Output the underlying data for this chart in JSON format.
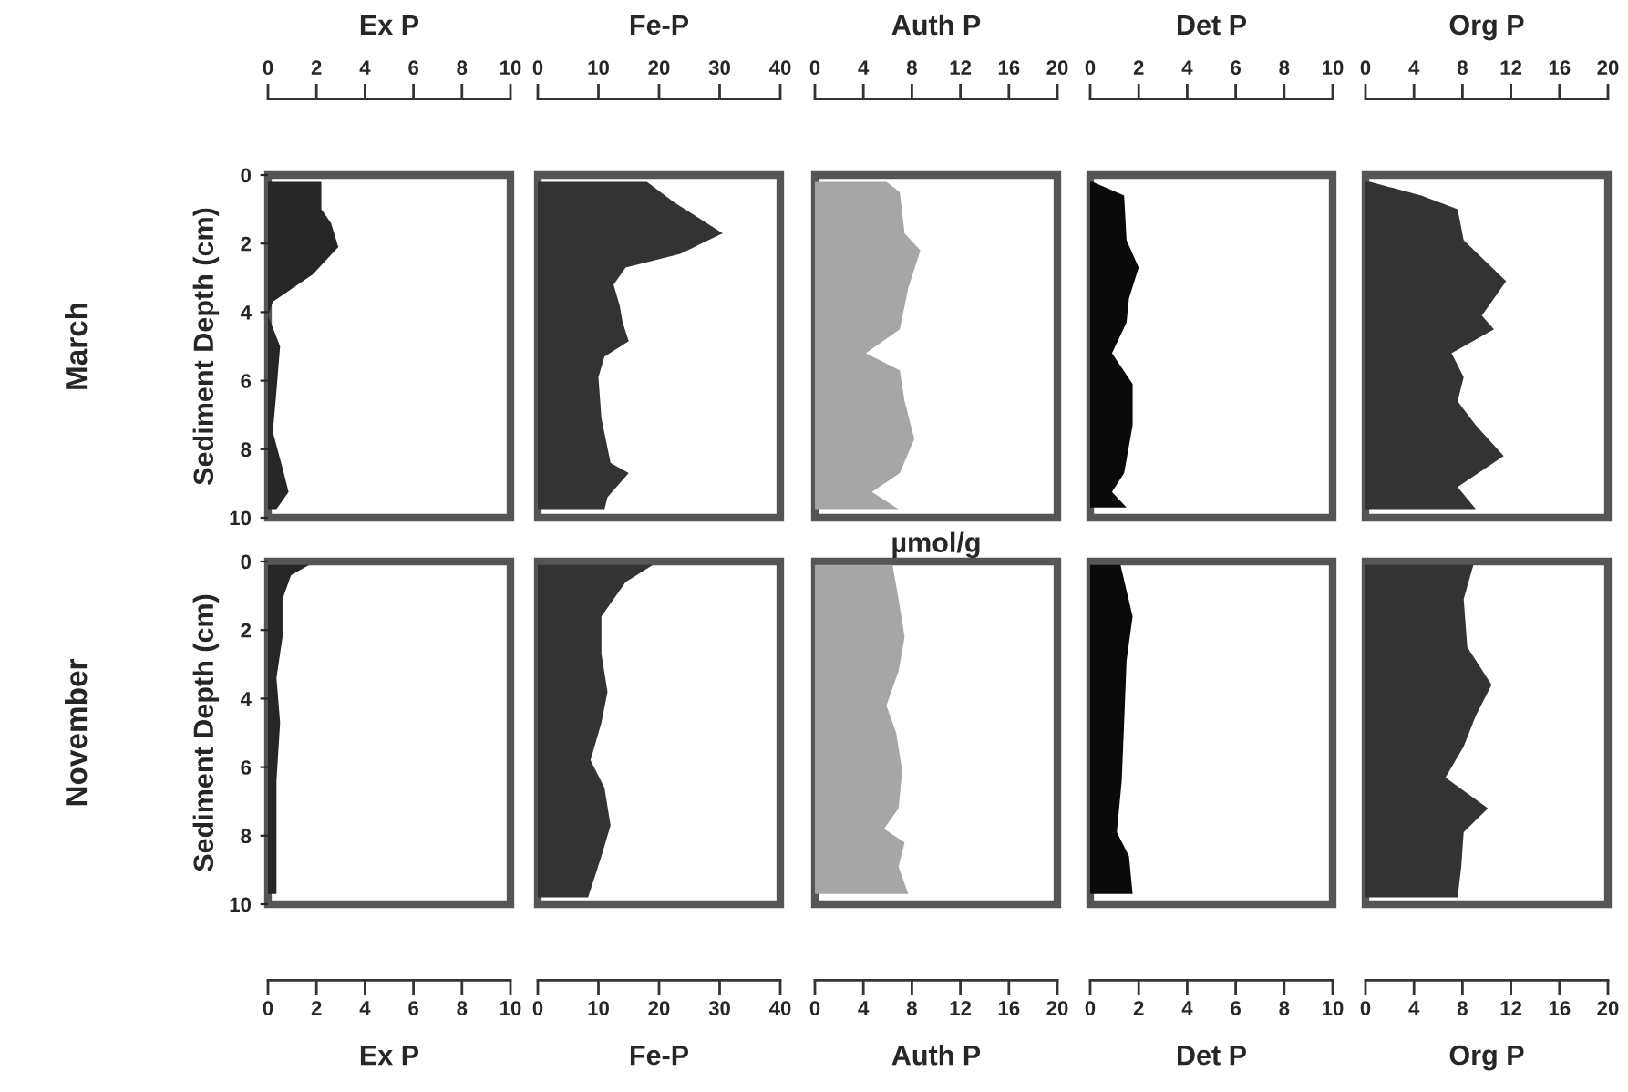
{
  "chart_data": [
    {
      "type": "area",
      "orientation": "horizontal",
      "title": "Ex P",
      "ylabel": "Sediment Depth (cm)",
      "annotations": [
        "March"
      ],
      "color": "#262626",
      "x": [
        0.2,
        1.0,
        1.4,
        2.1,
        2.9,
        3.7,
        4.1,
        5.0,
        6.3,
        7.5,
        8.55,
        9.25,
        9.75
      ],
      "values": [
        2.2,
        2.2,
        2.6,
        2.9,
        1.85,
        0.2,
        0,
        0.5,
        0.35,
        0.2,
        0.6,
        0.85,
        0.35
      ],
      "xlim": [
        0,
        10
      ],
      "xticks": [
        0,
        2,
        4,
        6,
        8,
        10
      ],
      "ylim": [
        10,
        0
      ],
      "yticks": [
        0,
        2,
        4,
        6,
        8,
        10
      ]
    },
    {
      "type": "area",
      "orientation": "horizontal",
      "title": "Fe-P",
      "color": "#333333",
      "tick_labels": "x",
      "x": [
        0.2,
        0.8,
        1.7,
        2.3,
        2.7,
        3.2,
        3.8,
        4.3,
        4.85,
        5.3,
        5.9,
        7.1,
        8.4,
        8.7,
        9.4,
        9.75
      ],
      "values": [
        18,
        22.5,
        30.5,
        23.5,
        14.5,
        12.5,
        13.5,
        14,
        15,
        11,
        10,
        10.5,
        12,
        15,
        11.5,
        11
      ],
      "xlim": [
        0,
        40
      ],
      "xticks": [
        0,
        10,
        20,
        30,
        40
      ],
      "ylim": [
        10,
        0
      ]
    },
    {
      "type": "area",
      "orientation": "horizontal",
      "title": "Auth P",
      "color": "#a6a6a6",
      "tick_labels": "x",
      "x": [
        0.2,
        0.5,
        1.7,
        2.2,
        3.3,
        4.5,
        5.2,
        5.7,
        6.6,
        7.7,
        8.7,
        9.25,
        9.75
      ],
      "values": [
        5.9,
        7.0,
        7.4,
        8.7,
        7.7,
        7.0,
        4.2,
        7.0,
        7.4,
        8.2,
        7.0,
        4.7,
        6.9
      ],
      "xlim": [
        0,
        20
      ],
      "xticks": [
        0,
        4,
        8,
        12,
        16,
        20
      ],
      "ylim": [
        10,
        0
      ]
    },
    {
      "type": "area",
      "orientation": "horizontal",
      "title": "Det P",
      "color": "#0a0a0a",
      "tick_labels": "x",
      "x": [
        0.2,
        0.6,
        1.9,
        2.7,
        3.6,
        4.3,
        5.2,
        6.1,
        7.3,
        8.7,
        9.25,
        9.7
      ],
      "values": [
        0.1,
        1.4,
        1.5,
        2.0,
        1.6,
        1.5,
        0.9,
        1.75,
        1.75,
        1.4,
        0.9,
        1.5
      ],
      "xlim": [
        0,
        10
      ],
      "xticks": [
        0,
        2,
        4,
        6,
        8,
        10
      ],
      "ylim": [
        10,
        0
      ]
    },
    {
      "type": "area",
      "orientation": "horizontal",
      "title": "Org P",
      "color": "#333333",
      "tick_labels": "x",
      "x": [
        0.2,
        0.6,
        1.0,
        1.9,
        3.1,
        4.1,
        4.5,
        5.2,
        5.9,
        6.6,
        7.3,
        8.2,
        9.1,
        9.75
      ],
      "values": [
        0.4,
        4.6,
        7.6,
        8.1,
        11.6,
        9.6,
        10.6,
        7.1,
        8.1,
        7.6,
        9.1,
        11.4,
        7.6,
        9.1
      ],
      "xlim": [
        0,
        20
      ],
      "xticks": [
        0,
        4,
        8,
        12,
        16,
        20
      ],
      "ylim": [
        10,
        0
      ]
    },
    {
      "type": "area",
      "orientation": "horizontal",
      "xlabel": "Ex P",
      "ylabel": "Sediment Depth (cm)",
      "annotations": [
        "November"
      ],
      "color": "#262626",
      "x": [
        0.1,
        0.4,
        1.1,
        2.2,
        3.4,
        4.7,
        6.4,
        8.2,
        9.7
      ],
      "values": [
        1.7,
        0.95,
        0.6,
        0.6,
        0.35,
        0.5,
        0.35,
        0.35,
        0.35
      ],
      "xlim": [
        0,
        10
      ],
      "xticks": [
        0,
        2,
        4,
        6,
        8,
        10
      ],
      "ylim": [
        10,
        0
      ],
      "yticks": [
        0,
        2,
        4,
        6,
        8,
        10
      ]
    },
    {
      "type": "area",
      "orientation": "horizontal",
      "xlabel": "Fe-P",
      "color": "#333333",
      "tick_labels": "x",
      "x": [
        0.1,
        0.6,
        1.6,
        2.7,
        3.8,
        4.7,
        5.8,
        6.6,
        7.7,
        8.6,
        9.8
      ],
      "values": [
        19,
        14.5,
        10.5,
        10.5,
        11.5,
        10.5,
        8.7,
        11,
        12,
        10.5,
        8.3
      ],
      "xlim": [
        0,
        40
      ],
      "xticks": [
        0,
        10,
        20,
        30,
        40
      ],
      "ylim": [
        10,
        0
      ]
    },
    {
      "type": "area",
      "orientation": "horizontal",
      "xlabel": "Auth P",
      "annotations": [
        "µmol/g"
      ],
      "color": "#a6a6a6",
      "tick_labels": "x",
      "x": [
        0.1,
        1.1,
        2.2,
        3.2,
        4.2,
        5.0,
        6.1,
        7.2,
        7.8,
        8.2,
        8.9,
        9.7
      ],
      "values": [
        6.4,
        6.9,
        7.4,
        6.9,
        5.9,
        6.7,
        7.2,
        6.9,
        5.7,
        7.4,
        6.9,
        7.7
      ],
      "xlim": [
        0,
        20
      ],
      "xticks": [
        0,
        4,
        8,
        12,
        16,
        20
      ],
      "ylim": [
        10,
        0
      ]
    },
    {
      "type": "area",
      "orientation": "horizontal",
      "xlabel": "Det P",
      "color": "#0a0a0a",
      "tick_labels": "x",
      "x": [
        0.1,
        1.6,
        2.9,
        4.7,
        6.4,
        7.9,
        8.6,
        9.7
      ],
      "values": [
        1.25,
        1.75,
        1.5,
        1.4,
        1.3,
        1.1,
        1.6,
        1.75
      ],
      "xlim": [
        0,
        10
      ],
      "xticks": [
        0,
        2,
        4,
        6,
        8,
        10
      ],
      "ylim": [
        10,
        0
      ]
    },
    {
      "type": "area",
      "orientation": "horizontal",
      "xlabel": "Org P",
      "color": "#333333",
      "tick_labels": "x",
      "x": [
        0.1,
        1.1,
        2.5,
        3.6,
        4.5,
        5.4,
        6.3,
        7.2,
        7.9,
        8.9,
        9.8
      ],
      "values": [
        8.9,
        8.1,
        8.4,
        10.4,
        9.1,
        8.1,
        6.6,
        10.1,
        8.1,
        7.9,
        7.6
      ],
      "xlim": [
        0,
        20
      ],
      "xticks": [
        0,
        4,
        8,
        12,
        16,
        20
      ],
      "ylim": [
        10,
        0
      ]
    }
  ]
}
